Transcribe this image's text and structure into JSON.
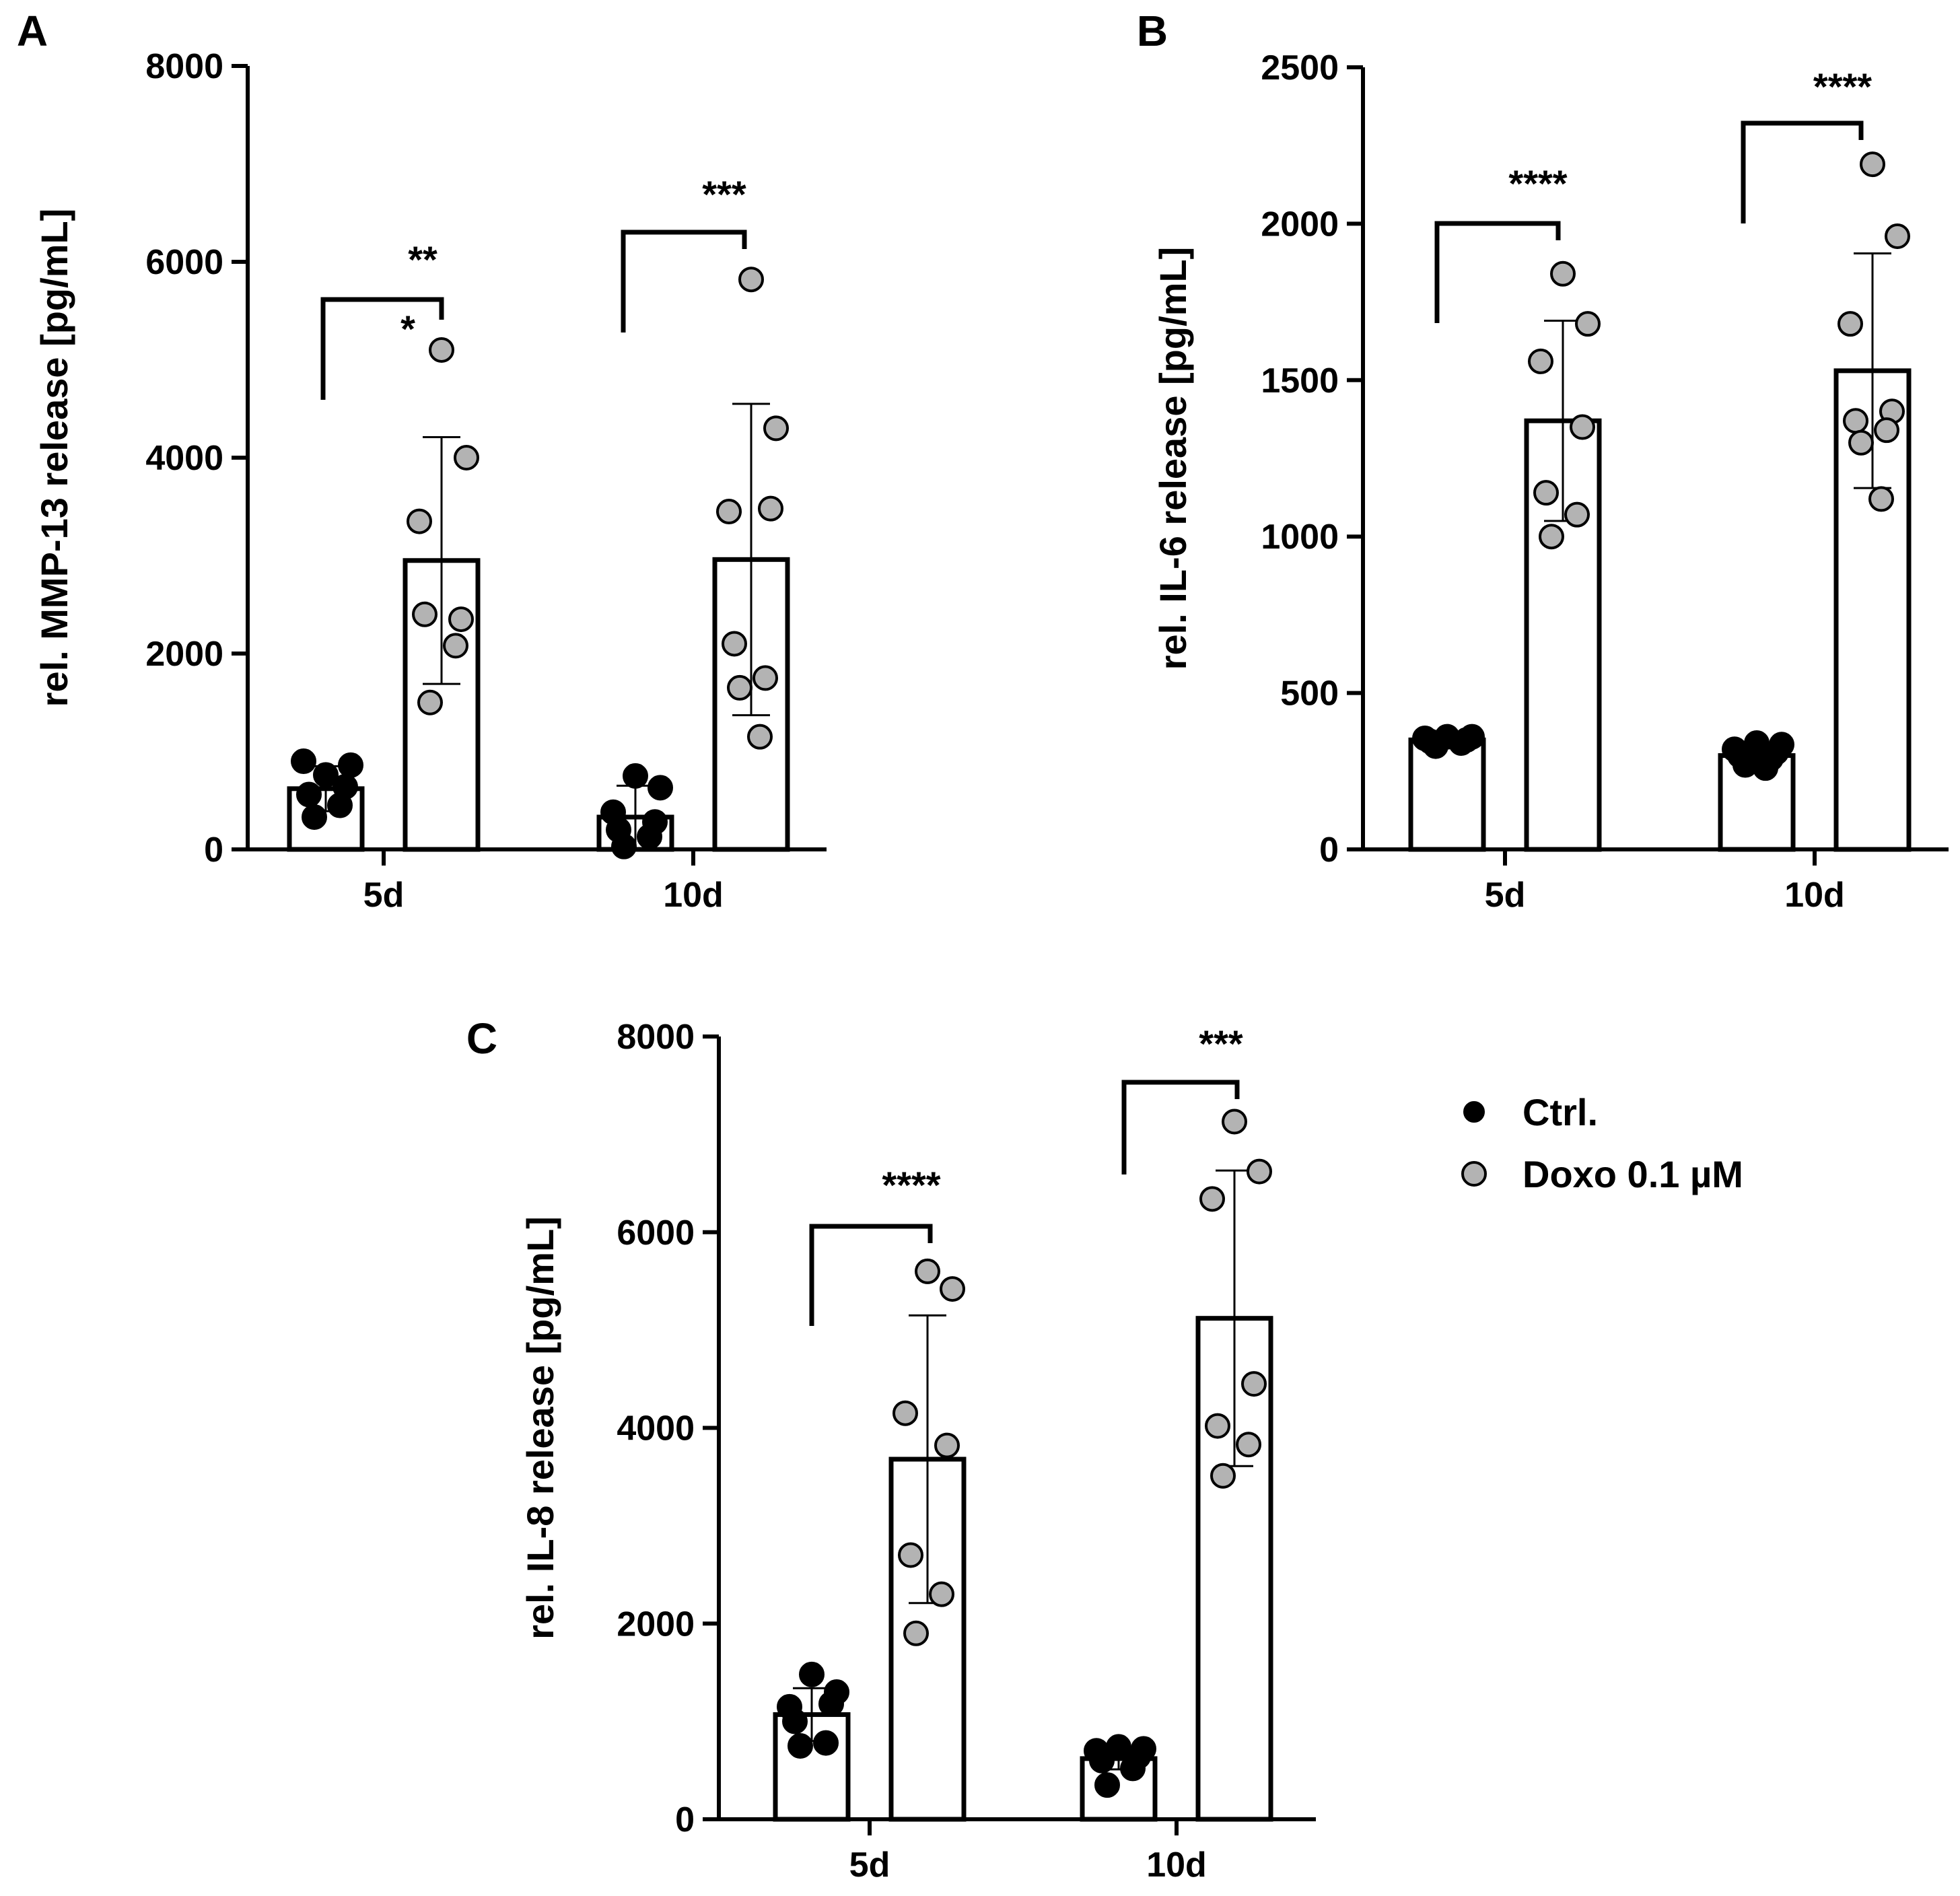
{
  "colors": {
    "ctrl": "#000000",
    "doxo": "#b3b3b3",
    "axis": "#000000",
    "bar_fill": "#ffffff"
  },
  "legend": {
    "placement": "right of panel C",
    "entries": [
      {
        "label": "Ctrl.",
        "color": "#000000"
      },
      {
        "label": "Doxo 0.1 µM",
        "color": "#b3b3b3"
      }
    ]
  },
  "chart_data": [
    {
      "panel_label": "A",
      "type": "bar",
      "ylabel": "rel. MMP-13 release [pg/mL]",
      "ylim": [
        0,
        8000
      ],
      "yticks": [
        0,
        2000,
        4000,
        6000,
        8000
      ],
      "categories": [
        "5d",
        "10d"
      ],
      "series": [
        {
          "name": "Ctrl.",
          "values": [
            620,
            330
          ],
          "sd": [
            230,
            320
          ],
          "points": [
            [
              760,
              860,
              900,
              640,
              560,
              450,
              330
            ],
            [
              750,
              630,
              380,
              280,
              200,
              130,
              30
            ]
          ]
        },
        {
          "name": "Doxo 0.1 µM",
          "values": [
            2950,
            2960
          ],
          "sd": [
            1260,
            1590
          ],
          "points": [
            [
              5100,
              4000,
              3350,
              2350,
              2400,
              2080,
              1500
            ],
            [
              5820,
              4300,
              3450,
              3480,
              2100,
              1750,
              1650,
              1150
            ]
          ]
        }
      ],
      "significance": [
        {
          "category": "5d",
          "label": "**"
        },
        {
          "category": "5d",
          "label": "*"
        },
        {
          "category": "10d",
          "label": "***"
        }
      ]
    },
    {
      "panel_label": "B",
      "type": "bar",
      "ylabel": "rel. IL-6 release [pg/mL]",
      "ylim": [
        0,
        2500
      ],
      "yticks": [
        0,
        500,
        1000,
        1500,
        2000,
        2500
      ],
      "categories": [
        "5d",
        "10d"
      ],
      "series": [
        {
          "name": "Ctrl.",
          "values": [
            350,
            300
          ],
          "sd": [
            10,
            25
          ],
          "points": [
            [
              360,
              360,
              355,
              350,
              345,
              340,
              330
            ],
            [
              340,
              335,
              320,
              310,
              300,
              290,
              270,
              260
            ]
          ]
        },
        {
          "name": "Doxo 0.1 µM",
          "values": [
            1370,
            1530
          ],
          "sd": [
            320,
            375
          ],
          "points": [
            [
              1840,
              1680,
              1560,
              1350,
              1140,
              1070,
              1000
            ],
            [
              2190,
              1960,
              1680,
              1400,
              1370,
              1340,
              1300,
              1120
            ]
          ]
        }
      ],
      "significance": [
        {
          "category": "5d",
          "label": "****"
        },
        {
          "category": "10d",
          "label": "****"
        }
      ]
    },
    {
      "panel_label": "C",
      "type": "bar",
      "ylabel": "rel. IL-8 release [pg/mL]",
      "ylim": [
        0,
        8000
      ],
      "yticks": [
        0,
        2000,
        4000,
        6000,
        8000
      ],
      "categories": [
        "5d",
        "10d"
      ],
      "series": [
        {
          "name": "Ctrl.",
          "values": [
            1070,
            620
          ],
          "sd": [
            270,
            110
          ],
          "points": [
            [
              1480,
              1300,
              1150,
              1180,
              1000,
              780,
              750
            ],
            [
              740,
              720,
              700,
              640,
              600,
              520,
              350
            ]
          ]
        },
        {
          "name": "Doxo 0.1 µM",
          "values": [
            3680,
            5120
          ],
          "sd": [
            1470,
            1510
          ],
          "points": [
            [
              5600,
              5420,
              4150,
              3820,
              2700,
              2300,
              1900
            ],
            [
              7130,
              6620,
              6340,
              4450,
              4020,
              3830,
              3510
            ]
          ]
        }
      ],
      "significance": [
        {
          "category": "5d",
          "label": "****"
        },
        {
          "category": "10d",
          "label": "***"
        }
      ]
    }
  ]
}
